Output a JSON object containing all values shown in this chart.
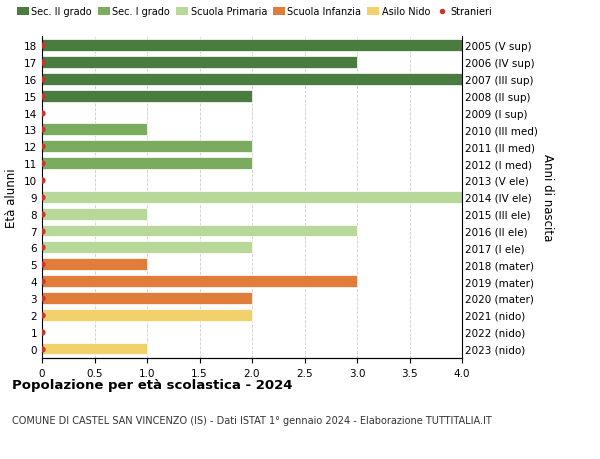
{
  "ages": [
    18,
    17,
    16,
    15,
    14,
    13,
    12,
    11,
    10,
    9,
    8,
    7,
    6,
    5,
    4,
    3,
    2,
    1,
    0
  ],
  "years": [
    "2005 (V sup)",
    "2006 (IV sup)",
    "2007 (III sup)",
    "2008 (II sup)",
    "2009 (I sup)",
    "2010 (III med)",
    "2011 (II med)",
    "2012 (I med)",
    "2013 (V ele)",
    "2014 (IV ele)",
    "2015 (III ele)",
    "2016 (II ele)",
    "2017 (I ele)",
    "2018 (mater)",
    "2019 (mater)",
    "2020 (mater)",
    "2021 (nido)",
    "2022 (nido)",
    "2023 (nido)"
  ],
  "values": [
    4.0,
    3.0,
    4.0,
    2.0,
    0.0,
    1.0,
    2.0,
    2.0,
    0.0,
    4.0,
    1.0,
    3.0,
    2.0,
    1.0,
    3.0,
    2.0,
    2.0,
    0.0,
    1.0
  ],
  "bar_colors": [
    "#4a7c40",
    "#4a7c40",
    "#4a7c40",
    "#4a7c40",
    "#4a7c40",
    "#7aab5e",
    "#7aab5e",
    "#7aab5e",
    "#b8d89a",
    "#b8d89a",
    "#b8d89a",
    "#b8d89a",
    "#b8d89a",
    "#e07d3a",
    "#e07d3a",
    "#e07d3a",
    "#f2d06b",
    "#f2d06b",
    "#f2d06b"
  ],
  "stranieri_color": "#c0392b",
  "legend_labels": [
    "Sec. II grado",
    "Sec. I grado",
    "Scuola Primaria",
    "Scuola Infanzia",
    "Asilo Nido",
    "Stranieri"
  ],
  "legend_colors": [
    "#4a7c40",
    "#7aab5e",
    "#b8d89a",
    "#e07d3a",
    "#f2d06b",
    "#c0392b"
  ],
  "ylabel": "Età alunni",
  "ylabel2": "Anni di nascita",
  "title": "Popolazione per età scolastica - 2024",
  "subtitle": "COMUNE DI CASTEL SAN VINCENZO (IS) - Dati ISTAT 1° gennaio 2024 - Elaborazione TUTTITALIA.IT",
  "xlim": [
    0,
    4.0
  ],
  "bar_height": 0.7,
  "background_color": "#ffffff",
  "grid_color": "#cccccc"
}
